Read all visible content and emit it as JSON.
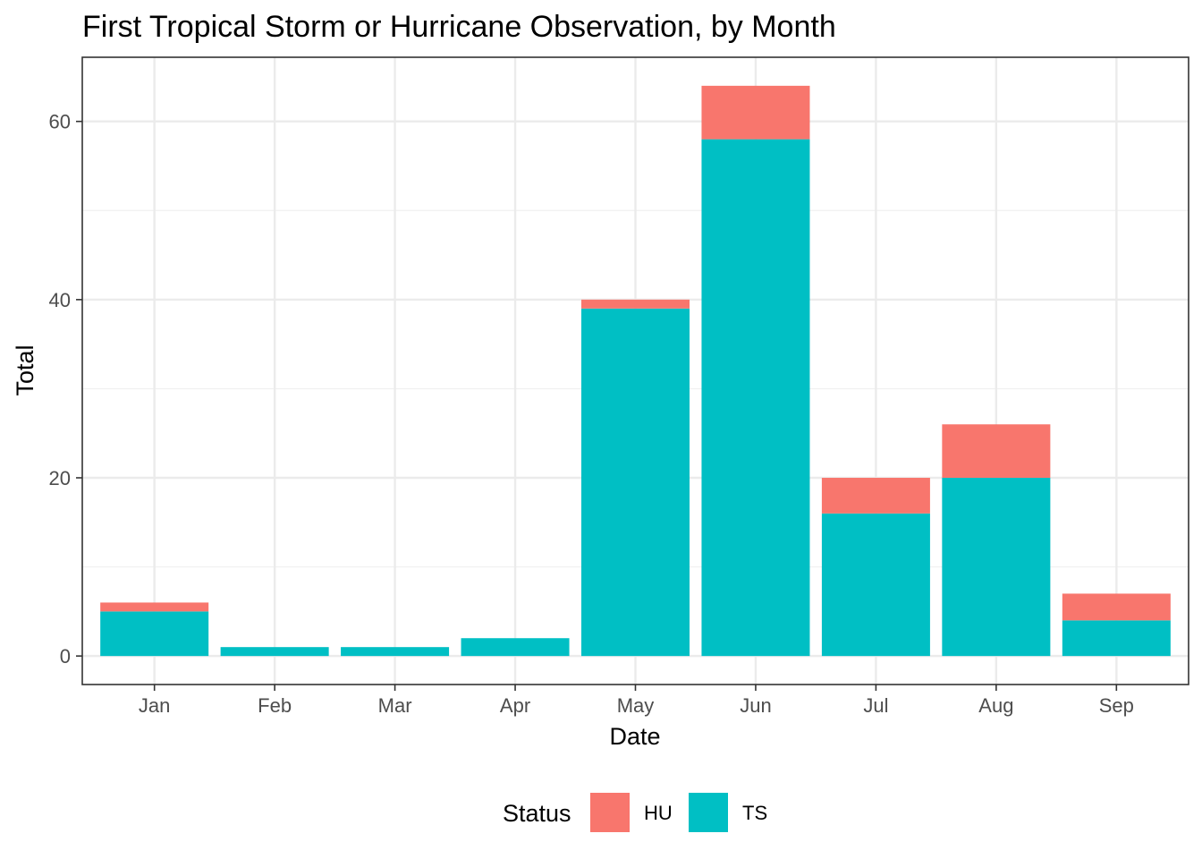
{
  "chart_data": {
    "type": "bar",
    "stacked": true,
    "title": "First Tropical Storm or Hurricane Observation, by Month",
    "xlabel": "Date",
    "ylabel": "Total",
    "categories": [
      "Jan",
      "Feb",
      "Mar",
      "Apr",
      "May",
      "Jun",
      "Jul",
      "Aug",
      "Sep"
    ],
    "series": [
      {
        "name": "TS",
        "color": "#00BFC4",
        "values": [
          5,
          1,
          1,
          2,
          39,
          58,
          16,
          20,
          4
        ]
      },
      {
        "name": "HU",
        "color": "#F8766D",
        "values": [
          1,
          0,
          0,
          0,
          1,
          6,
          4,
          6,
          3
        ]
      }
    ],
    "ylim": [
      -3.2,
      67.2
    ],
    "yticks": [
      0,
      20,
      40,
      60
    ],
    "grid": true,
    "legend": {
      "title": "Status",
      "position": "bottom",
      "items": [
        "HU",
        "TS"
      ]
    }
  }
}
